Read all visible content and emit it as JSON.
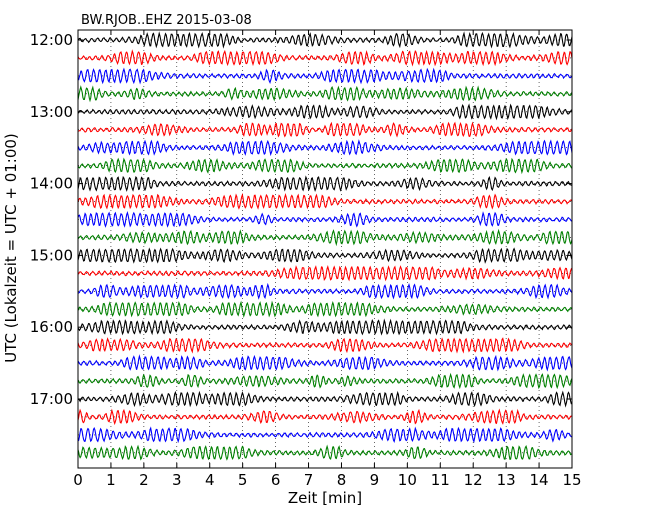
{
  "chart_data": {
    "type": "line",
    "title": "BW.RJOB..EHZ 2015-03-08",
    "xlabel": "Zeit  [min]",
    "ylabel": "UTC (Lokalzeit = UTC + 01:00)",
    "xlim": [
      0,
      15
    ],
    "x_ticks": [
      "0",
      "1",
      "2",
      "3",
      "4",
      "5",
      "6",
      "7",
      "8",
      "9",
      "10",
      "11",
      "12",
      "13",
      "14",
      "15"
    ],
    "y_ticks": [
      {
        "label": "12:00",
        "trace": 0
      },
      {
        "label": "13:00",
        "trace": 4
      },
      {
        "label": "14:00",
        "trace": 8
      },
      {
        "label": "15:00",
        "trace": 12
      },
      {
        "label": "16:00",
        "trace": 16
      },
      {
        "label": "17:00",
        "trace": 20
      }
    ],
    "grid": true,
    "trace_minutes": 15,
    "trace_colors": [
      "#000000",
      "#ff0000",
      "#0000ff",
      "#008000"
    ],
    "series": [
      {
        "start": "12:00"
      },
      {
        "start": "12:15"
      },
      {
        "start": "12:30"
      },
      {
        "start": "12:45"
      },
      {
        "start": "13:00"
      },
      {
        "start": "13:15"
      },
      {
        "start": "13:30"
      },
      {
        "start": "13:45"
      },
      {
        "start": "14:00"
      },
      {
        "start": "14:15"
      },
      {
        "start": "14:30"
      },
      {
        "start": "14:45"
      },
      {
        "start": "15:00"
      },
      {
        "start": "15:15"
      },
      {
        "start": "15:30"
      },
      {
        "start": "15:45"
      },
      {
        "start": "16:00"
      },
      {
        "start": "16:15"
      },
      {
        "start": "16:30"
      },
      {
        "start": "16:45"
      },
      {
        "start": "17:00"
      },
      {
        "start": "17:15"
      },
      {
        "start": "17:30"
      },
      {
        "start": "17:45"
      }
    ]
  }
}
